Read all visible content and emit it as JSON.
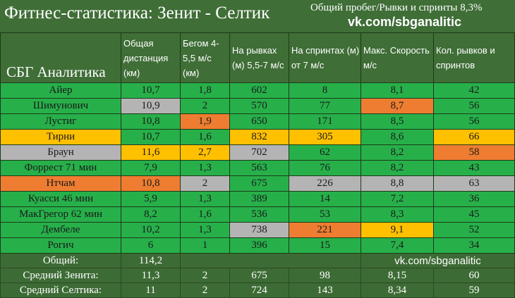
{
  "title": "Фитнес-статистика: Зенит - Селтик",
  "subtitle": "Общий пробег/Рывки и спринты 8,3%",
  "link": "vk.com/sbganalitic",
  "brand": "СБГ Аналитика",
  "colors": {
    "green": "#27b04a",
    "gray": "#b4b4b4",
    "orange": "#ee7d31",
    "yellow": "#ffc000",
    "header": "#3f6e37"
  },
  "columns": [
    "Общая дистанция (км)",
    "Бегом 4-5,5 м/с (км)",
    "На рывках (м) 5,5-7 м/с",
    "На спринтах (м) от 7 м/с",
    "Макс. Скорость м/с",
    "Кол. рывков и спринтов"
  ],
  "rows": [
    {
      "name": "Айер",
      "cells": [
        [
          "10,7",
          "g"
        ],
        [
          "1,8",
          "g"
        ],
        [
          "602",
          "g"
        ],
        [
          "8",
          "g"
        ],
        [
          "8,1",
          "g"
        ],
        [
          "42",
          "g"
        ]
      ],
      "name_color": "g"
    },
    {
      "name": "Шимунович",
      "cells": [
        [
          "10,9",
          "gy"
        ],
        [
          "2",
          "g"
        ],
        [
          "570",
          "g"
        ],
        [
          "77",
          "g"
        ],
        [
          "8,7",
          "o"
        ],
        [
          "56",
          "g"
        ]
      ],
      "name_color": "g"
    },
    {
      "name": "Лустиг",
      "cells": [
        [
          "10,8",
          "g"
        ],
        [
          "1,9",
          "o"
        ],
        [
          "650",
          "g"
        ],
        [
          "171",
          "g"
        ],
        [
          "8,5",
          "g"
        ],
        [
          "56",
          "g"
        ]
      ],
      "name_color": "g"
    },
    {
      "name": "Тирни",
      "cells": [
        [
          "10,7",
          "g"
        ],
        [
          "1,6",
          "g"
        ],
        [
          "832",
          "y"
        ],
        [
          "305",
          "y"
        ],
        [
          "8,6",
          "g"
        ],
        [
          "66",
          "y"
        ]
      ],
      "name_color": "y"
    },
    {
      "name": "Браун",
      "cells": [
        [
          "11,6",
          "y"
        ],
        [
          "2,7",
          "y"
        ],
        [
          "702",
          "gy"
        ],
        [
          "62",
          "g"
        ],
        [
          "8,2",
          "g"
        ],
        [
          "58",
          "o"
        ]
      ],
      "name_color": "gy"
    },
    {
      "name": "Форрест 71 мин",
      "cells": [
        [
          "7,9",
          "g"
        ],
        [
          "1,3",
          "g"
        ],
        [
          "563",
          "g"
        ],
        [
          "76",
          "g"
        ],
        [
          "8,2",
          "g"
        ],
        [
          "43",
          "g"
        ]
      ],
      "name_color": "g"
    },
    {
      "name": "Нтчам",
      "cells": [
        [
          "10,8",
          "o"
        ],
        [
          "2",
          "gy"
        ],
        [
          "675",
          "g"
        ],
        [
          "226",
          "gy"
        ],
        [
          "8,8",
          "gy"
        ],
        [
          "63",
          "gy"
        ]
      ],
      "name_color": "o"
    },
    {
      "name": "Куасси 46 мин",
      "cells": [
        [
          "5,9",
          "g"
        ],
        [
          "1,3",
          "g"
        ],
        [
          "389",
          "g"
        ],
        [
          "14",
          "g"
        ],
        [
          "7,2",
          "g"
        ],
        [
          "36",
          "g"
        ]
      ],
      "name_color": "g"
    },
    {
      "name": "МакГрегор 62 мин",
      "cells": [
        [
          "8,2",
          "g"
        ],
        [
          "1,6",
          "g"
        ],
        [
          "536",
          "g"
        ],
        [
          "53",
          "g"
        ],
        [
          "8,3",
          "g"
        ],
        [
          "45",
          "g"
        ]
      ],
      "name_color": "g"
    },
    {
      "name": "Дембеле",
      "cells": [
        [
          "10,2",
          "g"
        ],
        [
          "1,3",
          "g"
        ],
        [
          "738",
          "gy"
        ],
        [
          "221",
          "o"
        ],
        [
          "9,1",
          "y"
        ],
        [
          "52",
          "g"
        ]
      ],
      "name_color": "g"
    },
    {
      "name": "Рогич",
      "cells": [
        [
          "6",
          "g"
        ],
        [
          "1",
          "g"
        ],
        [
          "396",
          "g"
        ],
        [
          "15",
          "g"
        ],
        [
          "7,4",
          "g"
        ],
        [
          "34",
          "g"
        ]
      ],
      "name_color": "g"
    }
  ],
  "total": {
    "label": "Общий:",
    "value": "114,2",
    "link": "vk.com/sbganalitic"
  },
  "averages": [
    {
      "label": "Средний Зенита:",
      "values": [
        "11,3",
        "2",
        "675",
        "98",
        "8,15",
        "60"
      ]
    },
    {
      "label": "Средний Селтика:",
      "values": [
        "11",
        "2",
        "724",
        "143",
        "8,34",
        "59"
      ]
    }
  ]
}
